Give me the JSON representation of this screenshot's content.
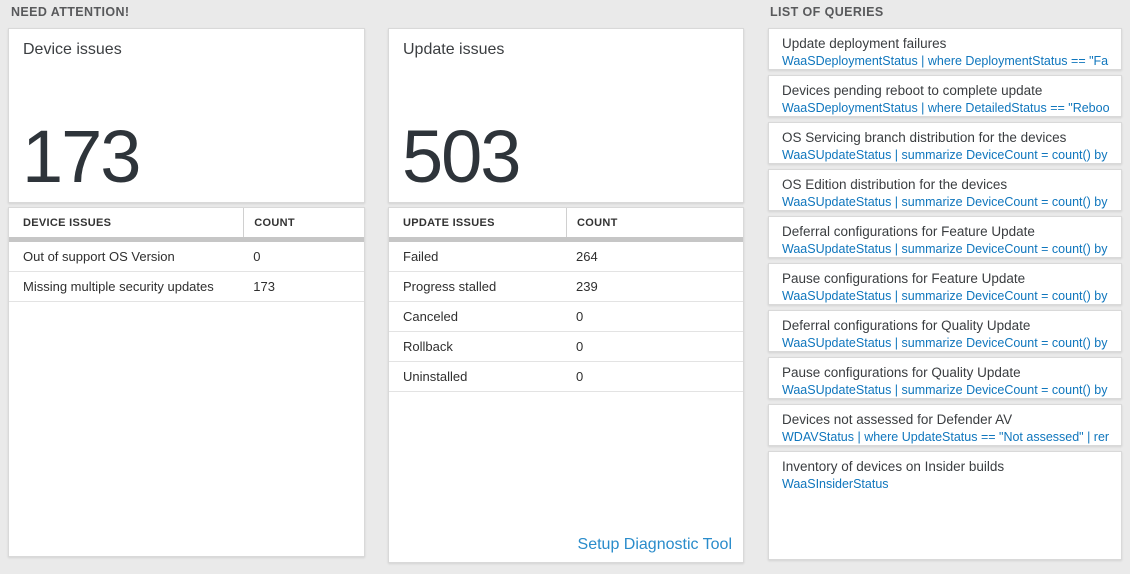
{
  "sections": {
    "need_attention": "NEED ATTENTION!",
    "list_of_queries": "LIST OF QUERIES"
  },
  "device_card": {
    "title": "Device issues",
    "count": "173",
    "table": {
      "headers": [
        "DEVICE ISSUES",
        "COUNT"
      ],
      "rows": [
        [
          "Out of support OS Version",
          "0"
        ],
        [
          "Missing multiple security updates",
          "173"
        ]
      ]
    }
  },
  "update_card": {
    "title": "Update issues",
    "count": "503",
    "table": {
      "headers": [
        "UPDATE ISSUES",
        "COUNT"
      ],
      "rows": [
        [
          "Failed",
          "264"
        ],
        [
          "Progress stalled",
          "239"
        ],
        [
          "Canceled",
          "0"
        ],
        [
          "Rollback",
          "0"
        ],
        [
          "Uninstalled",
          "0"
        ]
      ]
    },
    "link": "Setup Diagnostic Tool"
  },
  "queries": [
    {
      "title": "Update deployment failures",
      "query": "WaaSDeploymentStatus | where DeploymentStatus == \"Failed\" |..."
    },
    {
      "title": "Devices pending reboot to complete update",
      "query": "WaaSDeploymentStatus | where DetailedStatus == \"Reboot pend..."
    },
    {
      "title": "OS Servicing branch distribution for the devices",
      "query": "WaaSUpdateStatus | summarize DeviceCount = count() by OSSer..."
    },
    {
      "title": "OS Edition distribution for the devices",
      "query": "WaaSUpdateStatus | summarize DeviceCount = count() by OSEdit..."
    },
    {
      "title": "Deferral configurations for Feature Update",
      "query": "WaaSUpdateStatus | summarize DeviceCount = count() by Featur..."
    },
    {
      "title": "Pause configurations for Feature Update",
      "query": "WaaSUpdateStatus | summarize DeviceCount = count() by Featur..."
    },
    {
      "title": "Deferral configurations for Quality Update",
      "query": "WaaSUpdateStatus | summarize DeviceCount = count() by Qualit..."
    },
    {
      "title": "Pause configurations for Quality Update",
      "query": "WaaSUpdateStatus | summarize DeviceCount = count() by Qualit..."
    },
    {
      "title": "Devices not assessed for Defender AV",
      "query": "WDAVStatus | where UpdateStatus == \"Not assessed\" | render ta..."
    },
    {
      "title": "Inventory of devices on Insider builds",
      "query": "WaaSInsiderStatus"
    }
  ],
  "colors": {
    "query_blue": "#0f76bd",
    "link_blue": "#2a8ccb",
    "big_number": "#2e343a",
    "page_background": "#eaeaea"
  }
}
